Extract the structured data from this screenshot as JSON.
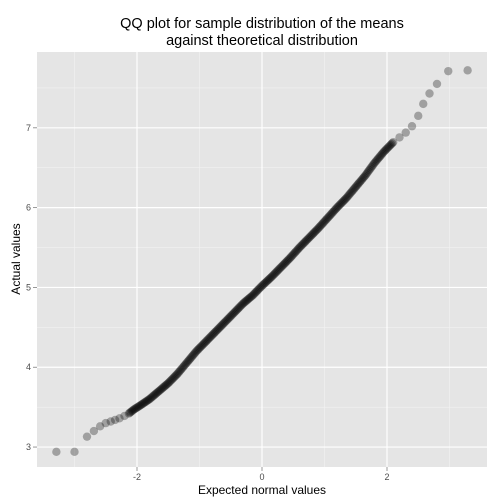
{
  "chart_data": {
    "type": "scatter",
    "title_lines": [
      "QQ plot for sample distribution of the means",
      "against theoretical distribution"
    ],
    "xlabel": "Expected normal values",
    "ylabel": "Actual values",
    "xlim": [
      -3.6,
      3.6
    ],
    "ylim": [
      2.75,
      7.95
    ],
    "x_ticks": [
      -2,
      0,
      2
    ],
    "x_tick_labels": [
      "-2",
      "0",
      "2"
    ],
    "y_ticks": [
      3,
      4,
      5,
      6,
      7
    ],
    "y_tick_labels": [
      "3",
      "4",
      "5",
      "6",
      "7"
    ],
    "grid": true,
    "point_color": "#000000",
    "point_opacity": 0.3,
    "panel_background": "#e5e5e5",
    "grid_color": "#ffffff",
    "points": [
      [
        -3.29,
        2.94
      ],
      [
        -3.0,
        2.94
      ],
      [
        -2.8,
        3.13
      ],
      [
        -2.69,
        3.2
      ],
      [
        -2.59,
        3.26
      ],
      [
        -2.5,
        3.3
      ],
      [
        -2.42,
        3.32
      ],
      [
        -2.35,
        3.34
      ],
      [
        -2.28,
        3.36
      ],
      [
        -2.2,
        3.39
      ],
      [
        -2.13,
        3.42
      ],
      [
        -2.05,
        3.47
      ],
      [
        -1.95,
        3.52
      ],
      [
        -1.8,
        3.6
      ],
      [
        -1.65,
        3.7
      ],
      [
        -1.5,
        3.8
      ],
      [
        -1.35,
        3.92
      ],
      [
        -1.2,
        4.06
      ],
      [
        -1.05,
        4.2
      ],
      [
        -0.9,
        4.32
      ],
      [
        -0.75,
        4.44
      ],
      [
        -0.6,
        4.56
      ],
      [
        -0.45,
        4.68
      ],
      [
        -0.3,
        4.8
      ],
      [
        -0.15,
        4.9
      ],
      [
        0.0,
        5.02
      ],
      [
        0.15,
        5.13
      ],
      [
        0.3,
        5.25
      ],
      [
        0.45,
        5.37
      ],
      [
        0.6,
        5.5
      ],
      [
        0.75,
        5.62
      ],
      [
        0.9,
        5.74
      ],
      [
        1.05,
        5.87
      ],
      [
        1.2,
        6.0
      ],
      [
        1.35,
        6.12
      ],
      [
        1.5,
        6.26
      ],
      [
        1.65,
        6.4
      ],
      [
        1.8,
        6.56
      ],
      [
        1.95,
        6.7
      ],
      [
        2.1,
        6.82
      ],
      [
        2.2,
        6.88
      ],
      [
        2.3,
        6.94
      ],
      [
        2.4,
        7.02
      ],
      [
        2.5,
        7.15
      ],
      [
        2.58,
        7.3
      ],
      [
        2.68,
        7.43
      ],
      [
        2.8,
        7.55
      ],
      [
        2.98,
        7.71
      ],
      [
        3.29,
        7.72
      ]
    ]
  }
}
